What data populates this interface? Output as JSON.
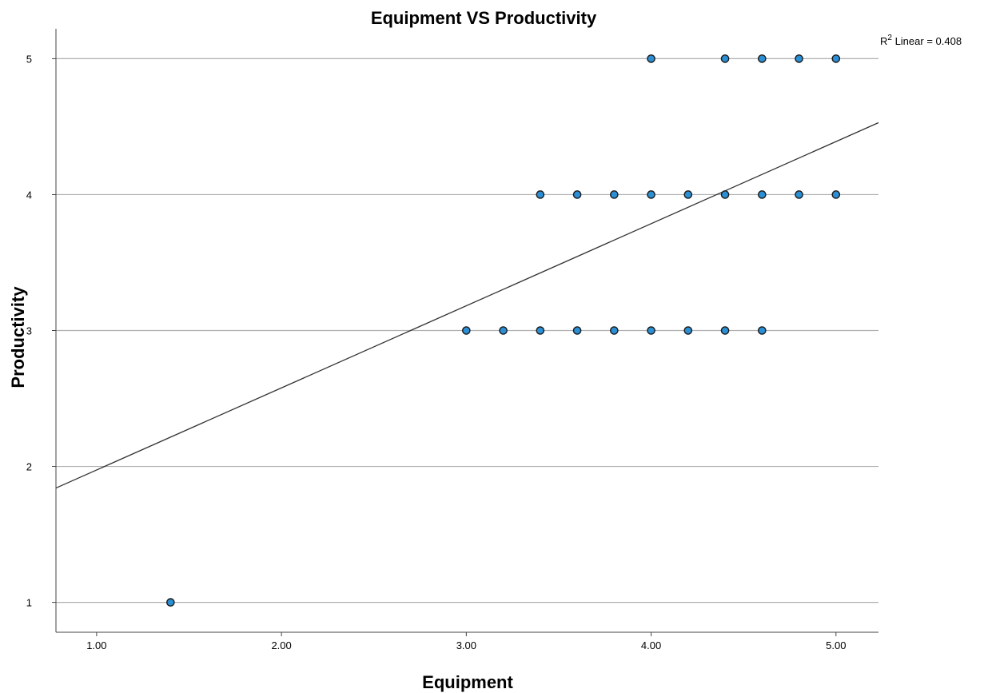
{
  "chart_data": {
    "type": "scatter",
    "title": "Equipment VS Productivity",
    "xlabel": "Equipment",
    "ylabel": "Productivity",
    "xlim": [
      0.78,
      5.23
    ],
    "ylim": [
      0.78,
      5.22
    ],
    "x_ticks": [
      1.0,
      2.0,
      3.0,
      4.0,
      5.0
    ],
    "x_tick_labels": [
      "1.00",
      "2.00",
      "3.00",
      "4.00",
      "5.00"
    ],
    "y_ticks": [
      1,
      2,
      3,
      4,
      5
    ],
    "y_tick_labels": [
      "1",
      "2",
      "3",
      "4",
      "5"
    ],
    "grid": "horizontal",
    "colors": {
      "point_fill": "#2b8fd6",
      "point_stroke": "#1a1a1a",
      "fit_line": "#333333",
      "grid": "#b0b0b0"
    },
    "points": [
      {
        "x": 1.4,
        "y": 1
      },
      {
        "x": 3.0,
        "y": 3
      },
      {
        "x": 3.2,
        "y": 3
      },
      {
        "x": 3.4,
        "y": 3
      },
      {
        "x": 3.6,
        "y": 3
      },
      {
        "x": 3.8,
        "y": 3
      },
      {
        "x": 4.0,
        "y": 3
      },
      {
        "x": 4.2,
        "y": 3
      },
      {
        "x": 4.4,
        "y": 3
      },
      {
        "x": 4.6,
        "y": 3
      },
      {
        "x": 3.4,
        "y": 4
      },
      {
        "x": 3.6,
        "y": 4
      },
      {
        "x": 3.8,
        "y": 4
      },
      {
        "x": 4.0,
        "y": 4
      },
      {
        "x": 4.2,
        "y": 4
      },
      {
        "x": 4.4,
        "y": 4
      },
      {
        "x": 4.6,
        "y": 4
      },
      {
        "x": 4.8,
        "y": 4
      },
      {
        "x": 5.0,
        "y": 4
      },
      {
        "x": 4.0,
        "y": 5
      },
      {
        "x": 4.4,
        "y": 5
      },
      {
        "x": 4.6,
        "y": 5
      },
      {
        "x": 4.8,
        "y": 5
      },
      {
        "x": 5.0,
        "y": 5
      }
    ],
    "fit_line": {
      "type": "linear",
      "intercept": 1.37,
      "slope": 0.604
    },
    "annotation": {
      "r2_prefix": "R",
      "r2_sup": "2",
      "r2_text": " Linear = 0.408"
    }
  }
}
